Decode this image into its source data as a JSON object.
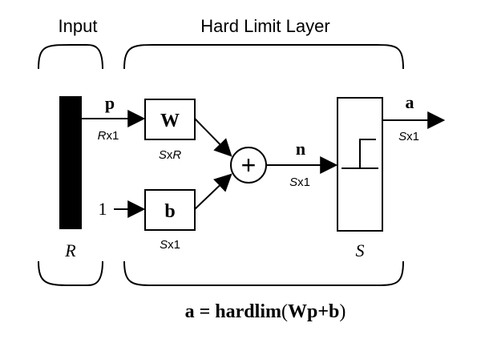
{
  "header": {
    "input_label": "Input",
    "layer_label": "Hard Limit Layer"
  },
  "input_vector": {
    "symbol": "p",
    "dim_prefix": "R",
    "dim_suffix": "x1",
    "bar_label": "R"
  },
  "weight": {
    "symbol": "W",
    "dim_prefix": "S",
    "dim_mid": "x",
    "dim_suffix": "R"
  },
  "bias": {
    "input_value": "1",
    "symbol": "b",
    "dim_prefix": "S",
    "dim_suffix": "x1"
  },
  "summer": {
    "symbol": "+"
  },
  "net_input": {
    "symbol": "n",
    "dim_prefix": "S",
    "dim_suffix": "x1"
  },
  "transfer": {
    "icon": "hard-limit-step-icon",
    "bottom_label": "S"
  },
  "output": {
    "symbol": "a",
    "dim_prefix": "S",
    "dim_suffix": "x1"
  },
  "equation": {
    "lhs": "a = hardlim",
    "paren_open": "(",
    "arg": "Wp+b",
    "paren_close": ")"
  }
}
